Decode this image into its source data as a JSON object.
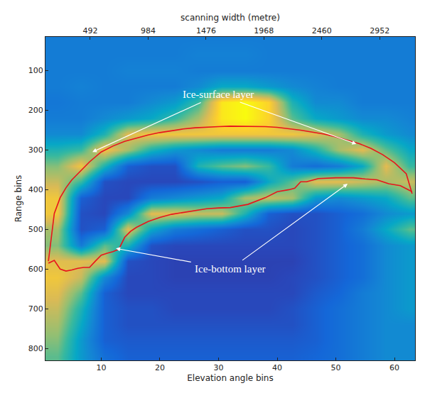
{
  "chart_data": {
    "type": "heatmap",
    "x_label": "Elevation angle bins",
    "x2_label": "scanning width (metre)",
    "y_label": "Range bins",
    "xlim": [
      0.5,
      63.5
    ],
    "xticks": [
      10,
      20,
      30,
      40,
      50,
      60
    ],
    "x2lim": [
      112,
      3252
    ],
    "x2ticks": [
      492,
      984,
      1476,
      1968,
      2460,
      2952
    ],
    "ylim": [
      830,
      15
    ],
    "yticks": [
      100,
      200,
      300,
      400,
      500,
      600,
      700,
      800
    ],
    "heatmap": {
      "x": [
        2.5,
        6.5,
        10.5,
        14.5,
        18.5,
        22.5,
        26.5,
        30.5,
        34.5,
        38.5,
        42.5,
        46.5,
        50.5,
        54.5,
        58.5,
        62.5
      ],
      "y": [
        20,
        60,
        100,
        140,
        180,
        220,
        260,
        300,
        340,
        380,
        420,
        460,
        500,
        540,
        580,
        620,
        660,
        700,
        740,
        780,
        820
      ],
      "zlim": [
        0,
        1
      ],
      "colors": [
        "#352a87",
        "#2a45b8",
        "#1467d8",
        "#1485d4",
        "#06a7c6",
        "#38b99e",
        "#92bf73",
        "#d9ba56",
        "#fcce2e",
        "#f9fb0e"
      ],
      "cells": [
        [
          0.3,
          0.3,
          0.3,
          0.3,
          0.3,
          0.3,
          0.3,
          0.3,
          0.3,
          0.3,
          0.3,
          0.3,
          0.3,
          0.3,
          0.3,
          0.3
        ],
        [
          0.3,
          0.3,
          0.3,
          0.3,
          0.3,
          0.3,
          0.32,
          0.32,
          0.32,
          0.3,
          0.3,
          0.3,
          0.3,
          0.3,
          0.3,
          0.3
        ],
        [
          0.3,
          0.3,
          0.3,
          0.32,
          0.32,
          0.32,
          0.3,
          0.3,
          0.3,
          0.3,
          0.3,
          0.3,
          0.3,
          0.3,
          0.3,
          0.3
        ],
        [
          0.3,
          0.32,
          0.3,
          0.3,
          0.3,
          0.3,
          0.35,
          0.45,
          0.45,
          0.4,
          0.35,
          0.32,
          0.3,
          0.3,
          0.3,
          0.3
        ],
        [
          0.28,
          0.3,
          0.3,
          0.3,
          0.35,
          0.4,
          0.55,
          0.95,
          1,
          0.9,
          0.5,
          0.35,
          0.35,
          0.3,
          0.3,
          0.3
        ],
        [
          0.3,
          0.3,
          0.35,
          0.4,
          0.45,
          0.55,
          0.7,
          0.95,
          1,
          0.9,
          0.6,
          0.45,
          0.4,
          0.35,
          0.35,
          0.32
        ],
        [
          0.35,
          0.35,
          0.5,
          0.8,
          0.85,
          0.85,
          0.85,
          0.85,
          0.85,
          0.85,
          0.85,
          0.8,
          0.7,
          0.5,
          0.4,
          0.35
        ],
        [
          0.5,
          0.55,
          0.85,
          0.7,
          0.5,
          0.4,
          0.35,
          0.3,
          0.3,
          0.3,
          0.35,
          0.5,
          0.7,
          0.8,
          0.6,
          0.45
        ],
        [
          0.65,
          0.85,
          0.5,
          0.2,
          0.15,
          0.15,
          0.5,
          0.6,
          0.65,
          0.55,
          0.3,
          0.25,
          0.3,
          0.45,
          0.8,
          0.55
        ],
        [
          0.75,
          0.55,
          0.15,
          0.12,
          0.12,
          0.12,
          0.15,
          0.2,
          0.2,
          0.45,
          0.6,
          0.8,
          0.8,
          0.75,
          0.7,
          0.75
        ],
        [
          0.85,
          0.2,
          0.12,
          0.12,
          0.3,
          0.35,
          0.4,
          0.45,
          0.7,
          0.75,
          0.7,
          0.4,
          0.35,
          0.4,
          0.45,
          0.6
        ],
        [
          0.85,
          0.15,
          0.12,
          0.35,
          0.8,
          0.8,
          0.75,
          0.75,
          0.5,
          0.2,
          0.15,
          0.15,
          0.2,
          0.25,
          0.35,
          0.4
        ],
        [
          0.7,
          0.15,
          0.2,
          0.8,
          0.45,
          0.3,
          0.25,
          0.2,
          0.15,
          0.15,
          0.12,
          0.15,
          0.2,
          0.3,
          0.45,
          0.6
        ],
        [
          0.65,
          0.3,
          0.6,
          0.5,
          0.15,
          0.12,
          0.12,
          0.12,
          0.12,
          0.12,
          0.12,
          0.15,
          0.2,
          0.25,
          0.35,
          0.4
        ],
        [
          0.8,
          0.8,
          0.8,
          0.15,
          0.12,
          0.1,
          0.1,
          0.1,
          0.1,
          0.1,
          0.1,
          0.15,
          0.2,
          0.25,
          0.35,
          0.4
        ],
        [
          0.85,
          0.75,
          0.35,
          0.12,
          0.12,
          0.1,
          0.1,
          0.1,
          0.1,
          0.1,
          0.12,
          0.15,
          0.2,
          0.25,
          0.35,
          0.4
        ],
        [
          0.8,
          0.6,
          0.2,
          0.12,
          0.12,
          0.12,
          0.12,
          0.12,
          0.12,
          0.12,
          0.12,
          0.18,
          0.22,
          0.3,
          0.35,
          0.4
        ],
        [
          0.75,
          0.5,
          0.2,
          0.15,
          0.15,
          0.12,
          0.12,
          0.12,
          0.12,
          0.12,
          0.15,
          0.2,
          0.25,
          0.3,
          0.35,
          0.4
        ],
        [
          0.7,
          0.45,
          0.2,
          0.15,
          0.15,
          0.15,
          0.15,
          0.15,
          0.15,
          0.15,
          0.15,
          0.2,
          0.25,
          0.3,
          0.35,
          0.35
        ],
        [
          0.65,
          0.4,
          0.2,
          0.18,
          0.18,
          0.18,
          0.18,
          0.18,
          0.18,
          0.18,
          0.18,
          0.2,
          0.25,
          0.3,
          0.35,
          0.35
        ],
        [
          0.6,
          0.4,
          0.25,
          0.2,
          0.2,
          0.2,
          0.2,
          0.2,
          0.2,
          0.2,
          0.2,
          0.22,
          0.25,
          0.3,
          0.35,
          0.35
        ]
      ]
    },
    "series": [
      {
        "type": "line",
        "color": "#e8141c",
        "x": [
          1,
          2,
          3,
          4,
          5,
          6,
          8,
          10,
          12,
          14,
          16,
          18,
          20,
          22,
          24,
          26,
          28,
          30,
          32,
          34,
          36,
          38,
          40,
          42,
          44,
          46,
          48,
          50,
          52,
          54,
          56,
          58,
          60,
          62,
          63
        ],
        "values": [
          580,
          460,
          420,
          395,
          375,
          360,
          330,
          305,
          290,
          278,
          270,
          262,
          256,
          251,
          247,
          244,
          242,
          241,
          240,
          240,
          240,
          241,
          243,
          246,
          250,
          255,
          260,
          267,
          275,
          284,
          296,
          312,
          332,
          360,
          410
        ]
      },
      {
        "type": "line",
        "color": "#e8141c",
        "x": [
          1,
          2,
          3,
          4,
          5,
          6,
          7,
          8,
          9,
          10,
          11,
          12,
          13,
          14,
          15,
          16,
          18,
          20,
          22,
          25,
          28,
          30,
          32,
          35,
          38,
          40,
          42,
          43,
          44,
          45,
          47,
          50,
          53,
          55,
          57,
          59,
          61,
          63
        ],
        "values": [
          585,
          578,
          600,
          605,
          602,
          598,
          596,
          596,
          580,
          565,
          560,
          556,
          550,
          520,
          505,
          495,
          480,
          470,
          462,
          455,
          448,
          446,
          445,
          437,
          420,
          405,
          400,
          396,
          380,
          380,
          372,
          370,
          370,
          373,
          375,
          385,
          390,
          405
        ]
      }
    ],
    "annotations": [
      {
        "text": "Ice-surface layer",
        "x": 30,
        "y": 160,
        "arrows": [
          [
            8.5,
            305
          ],
          [
            53.5,
            285
          ]
        ]
      },
      {
        "text": "Ice-bottom layer",
        "x": 32,
        "y": 600,
        "arrows": [
          [
            12.5,
            548
          ],
          [
            52,
            385
          ]
        ]
      }
    ]
  }
}
